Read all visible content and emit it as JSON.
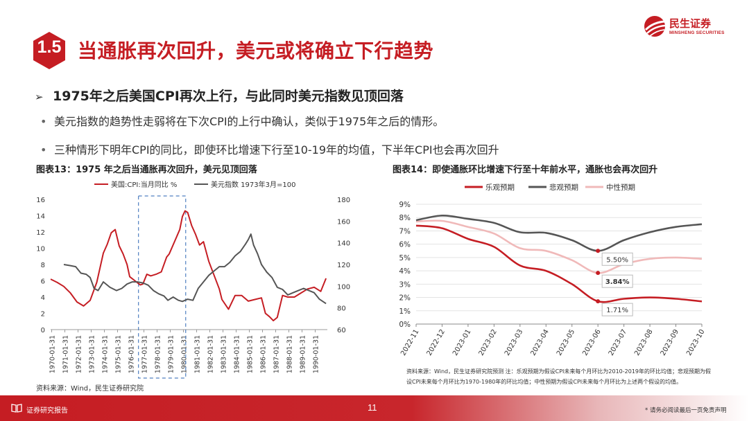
{
  "header": {
    "section_number": "1.5",
    "title": "当通胀再次回升，美元或将确立下行趋势",
    "logo_name": "民生证券",
    "logo_sub": "MINSHENG SECURITIES"
  },
  "content": {
    "heading": "1975年之后美国CPI再次上行，与此同时美元指数见顶回落",
    "bullets": [
      "美元指数的趋势性走弱将在下次CPI的上行中确认，类似于1975年之后的情形。",
      "三种情形下明年CPI的同比，即使环比增速下行至10-19年的均值，下半年CPI也会再次回升"
    ]
  },
  "colors": {
    "brand_red": "#c51d23",
    "dark_series": "#555555",
    "light_series": "#f0b9b9"
  },
  "chart_data": [
    {
      "type": "line",
      "title": "图表13：1975 年之后当通胀再次回升，美元见顶回落",
      "x_ticks": [
        "1970-01-31",
        "1971-01-31",
        "1972-01-31",
        "1973-01-31",
        "1974-01-31",
        "1975-01-31",
        "1976-01-31",
        "1977-01-31",
        "1978-01-31",
        "1979-01-31",
        "1980-01-31",
        "1981-01-31",
        "1982-01-31",
        "1983-01-31",
        "1984-01-31",
        "1985-01-31",
        "1986-01-31",
        "1987-01-31",
        "1988-01-31",
        "1989-01-31",
        "1990-01-31"
      ],
      "y_left_ticks": [
        "16",
        "14",
        "12",
        "10",
        "8",
        "6",
        "4",
        "2",
        "0"
      ],
      "y_right_ticks": [
        "180",
        "160",
        "140",
        "120",
        "100",
        "80",
        "60"
      ],
      "ylim_left": [
        0,
        16
      ],
      "ylim_right": [
        60,
        180
      ],
      "highlight_period": [
        "1976-09",
        "1980-04"
      ],
      "series": [
        {
          "name": "美国:CPI:当月同比 %",
          "axis": "left",
          "color": "#c51d23",
          "x": [
            1970.0,
            1970.5,
            1971.0,
            1971.5,
            1972.0,
            1972.5,
            1973.0,
            1973.5,
            1974.0,
            1974.3,
            1974.6,
            1974.9,
            1975.2,
            1975.5,
            1975.8,
            1976.0,
            1976.4,
            1976.8,
            1977.0,
            1977.3,
            1977.6,
            1978.0,
            1978.4,
            1978.8,
            1979.0,
            1979.4,
            1979.8,
            1980.0,
            1980.2,
            1980.4,
            1980.7,
            1981.0,
            1981.3,
            1981.6,
            1982.0,
            1982.4,
            1982.8,
            1983.0,
            1983.5,
            1984.0,
            1984.5,
            1985.0,
            1985.5,
            1986.0,
            1986.3,
            1986.6,
            1986.9,
            1987.2,
            1987.6,
            1988.0,
            1988.5,
            1989.0,
            1989.5,
            1990.0,
            1990.5,
            1990.9
          ],
          "y": [
            6.2,
            5.8,
            5.3,
            4.5,
            3.4,
            2.9,
            3.6,
            5.8,
            9.4,
            10.5,
            11.9,
            12.3,
            10.3,
            9.3,
            8.0,
            6.5,
            6.0,
            5.5,
            5.6,
            6.8,
            6.6,
            6.8,
            7.1,
            8.9,
            9.3,
            10.8,
            12.3,
            13.9,
            14.6,
            14.4,
            12.8,
            11.7,
            10.4,
            10.8,
            8.4,
            6.7,
            5.0,
            3.7,
            2.5,
            4.2,
            4.2,
            3.5,
            3.7,
            3.9,
            2.0,
            1.6,
            1.1,
            1.5,
            4.2,
            4.0,
            4.0,
            4.5,
            5.0,
            5.2,
            4.7,
            6.3
          ]
        },
        {
          "name": "美元指数 1973年3月=100",
          "axis": "right",
          "color": "#555555",
          "x": [
            1971.0,
            1971.5,
            1971.9,
            1972.3,
            1972.7,
            1973.0,
            1973.3,
            1973.6,
            1974.0,
            1974.5,
            1975.0,
            1975.4,
            1975.8,
            1976.2,
            1976.6,
            1977.0,
            1977.4,
            1977.8,
            1978.2,
            1978.6,
            1978.9,
            1979.3,
            1979.7,
            1980.0,
            1980.4,
            1980.8,
            1981.2,
            1981.6,
            1982.0,
            1982.4,
            1982.8,
            1983.2,
            1983.6,
            1984.0,
            1984.4,
            1984.8,
            1985.0,
            1985.2,
            1985.4,
            1985.7,
            1986.0,
            1986.4,
            1986.8,
            1987.2,
            1987.6,
            1988.0,
            1988.4,
            1988.8,
            1989.2,
            1989.6,
            1990.0,
            1990.4,
            1990.9
          ],
          "y": [
            120,
            119,
            118,
            112,
            111,
            108,
            98,
            96,
            104,
            99,
            96,
            98,
            102,
            104,
            104,
            103,
            101,
            96,
            93,
            91,
            87,
            90,
            87,
            86,
            88,
            87,
            98,
            104,
            110,
            114,
            118,
            118,
            122,
            128,
            132,
            139,
            143,
            148,
            138,
            130,
            120,
            113,
            108,
            99,
            97,
            92,
            94,
            96,
            98,
            96,
            94,
            88,
            84
          ]
        }
      ]
    },
    {
      "type": "line",
      "title": "图表14：即使通胀环比增速下行至十年前水平，通胀也会再次回升",
      "categories": [
        "2022-11",
        "2022-12",
        "2023-01",
        "2023-02",
        "2023-03",
        "2023-04",
        "2023-05",
        "2023-06",
        "2023-07",
        "2023-08",
        "2023-09",
        "2023-10"
      ],
      "y_ticks": [
        "9%",
        "8%",
        "7%",
        "6%",
        "5%",
        "4%",
        "3%",
        "2%",
        "1%",
        "0%"
      ],
      "ylim": [
        0,
        9
      ],
      "series": [
        {
          "name": "乐观预期",
          "color": "#c51d23",
          "values": [
            7.4,
            7.2,
            6.4,
            5.8,
            4.4,
            4.0,
            3.0,
            1.71,
            1.9,
            2.0,
            1.9,
            1.7
          ]
        },
        {
          "name": "悲观预期",
          "color": "#555555",
          "values": [
            7.8,
            8.15,
            7.9,
            7.6,
            6.9,
            6.85,
            6.3,
            5.5,
            6.3,
            6.9,
            7.3,
            7.5
          ]
        },
        {
          "name": "中性预期",
          "color": "#f0b9b9",
          "values": [
            7.7,
            7.75,
            7.3,
            6.8,
            5.7,
            5.5,
            4.8,
            3.84,
            4.5,
            4.9,
            5.0,
            4.9
          ]
        }
      ],
      "annotations": [
        {
          "category": "2023-06",
          "series": "悲观预期",
          "label": "5.50%"
        },
        {
          "category": "2023-06",
          "series": "中性预期",
          "label": "3.84%"
        },
        {
          "category": "2023-06",
          "series": "乐观预期",
          "label": "1.71%"
        }
      ]
    }
  ],
  "sources": {
    "chart1": "资料来源：Wind，民生证券研究院",
    "chart2": "资料来源：Wind，民生证券研究院预测 注：乐观预期为假设CPI未来每个月环比为2010-2019年的环比均值；悲观预期为假设CPI未来每个月环比为1970-1980年的环比均值；中性预期为假设CPI未来每个月环比为上述两个假设的均值。"
  },
  "footer": {
    "label": "证券研究报告",
    "page": "11",
    "disclaimer": "* 请务必阅读最后一页免责声明"
  }
}
